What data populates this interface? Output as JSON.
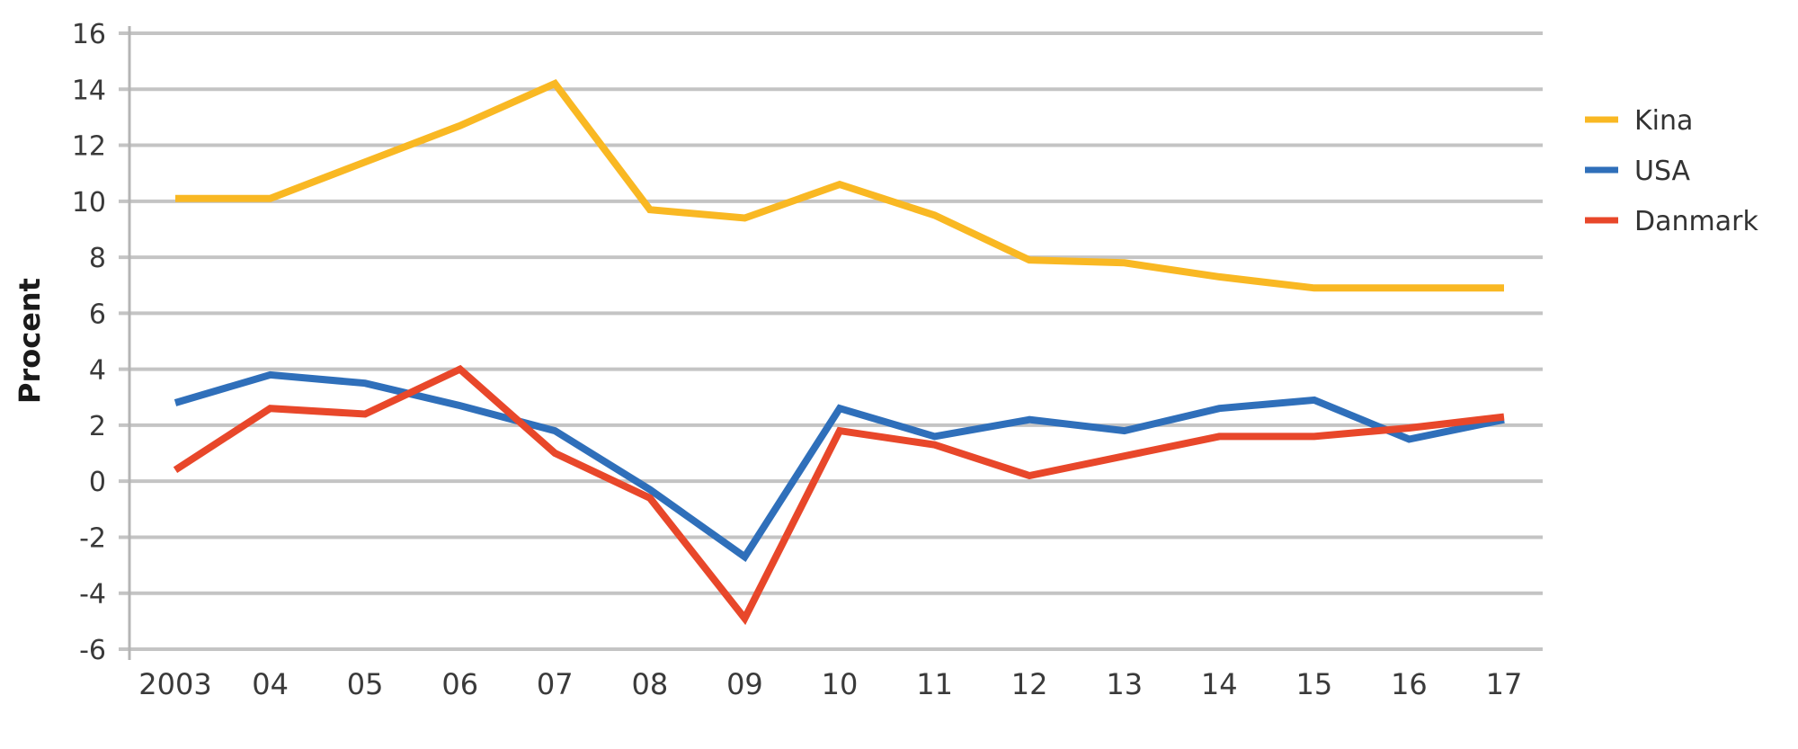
{
  "chart_data": {
    "type": "line",
    "title": "",
    "xlabel": "",
    "ylabel": "Procent",
    "ylim": [
      -6,
      16
    ],
    "yticks": [
      16,
      14,
      12,
      10,
      8,
      6,
      4,
      2,
      0,
      -2,
      -4,
      -6
    ],
    "grid": true,
    "legend_position": "right",
    "categories": [
      "2003",
      "04",
      "05",
      "06",
      "07",
      "08",
      "09",
      "10",
      "11",
      "12",
      "13",
      "14",
      "15",
      "16",
      "17"
    ],
    "series": [
      {
        "name": "Kina",
        "color": "#F9B823",
        "values": [
          10.1,
          10.1,
          11.4,
          12.7,
          14.2,
          9.7,
          9.4,
          10.6,
          9.5,
          7.9,
          7.8,
          7.3,
          6.9,
          6.9,
          6.9
        ]
      },
      {
        "name": "USA",
        "color": "#2F6FBA",
        "values": [
          2.8,
          3.8,
          3.5,
          2.7,
          1.8,
          -0.3,
          -2.7,
          2.6,
          1.6,
          2.2,
          1.8,
          2.6,
          2.9,
          1.5,
          2.2
        ]
      },
      {
        "name": "Danmark",
        "color": "#E8472A",
        "values": [
          0.4,
          2.6,
          2.4,
          4.0,
          1.0,
          -0.6,
          -4.9,
          1.8,
          1.3,
          0.2,
          0.9,
          1.6,
          1.6,
          1.9,
          2.3
        ]
      }
    ]
  }
}
